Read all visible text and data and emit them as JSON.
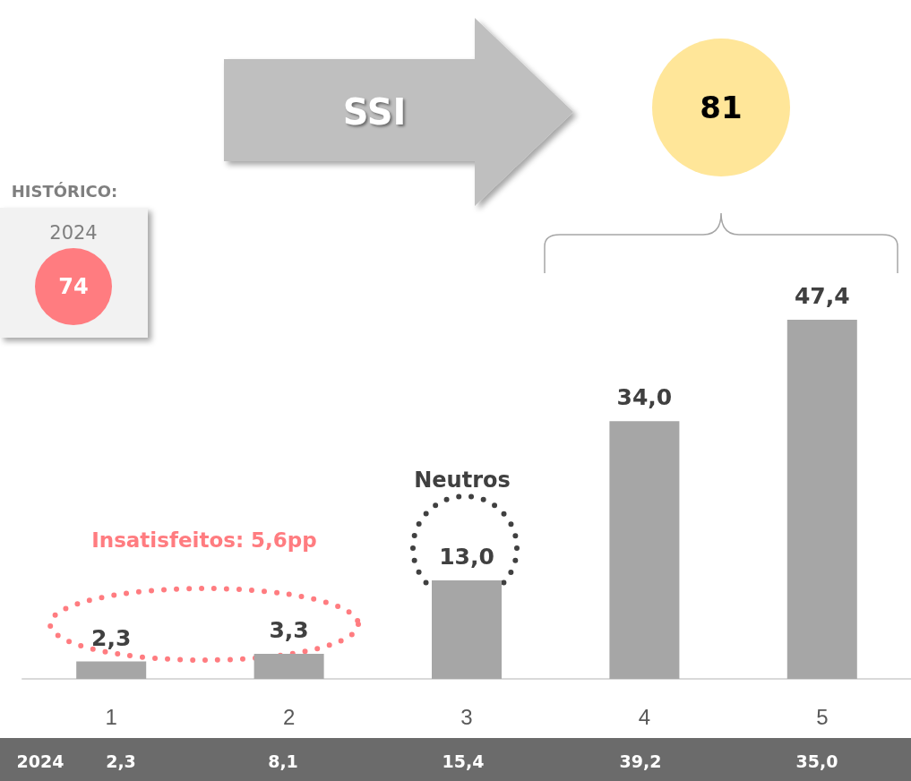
{
  "chart_data": {
    "type": "bar",
    "categories": [
      "1",
      "2",
      "3",
      "4",
      "5"
    ],
    "values": [
      2.3,
      3.3,
      13.0,
      34.0,
      47.4
    ],
    "value_labels": [
      "2,3",
      "3,3",
      "13,0",
      "34,0",
      "47,4"
    ],
    "color": "#a6a6a6",
    "annotations": [
      "HISTÓRICO:",
      "2024",
      "74",
      "SSI",
      "81",
      "Insatisfeitos:  5,6pp",
      "Neutros",
      "2024",
      "2,3",
      "8,1",
      "15,4",
      "39,2",
      "35,0"
    ]
  }
}
